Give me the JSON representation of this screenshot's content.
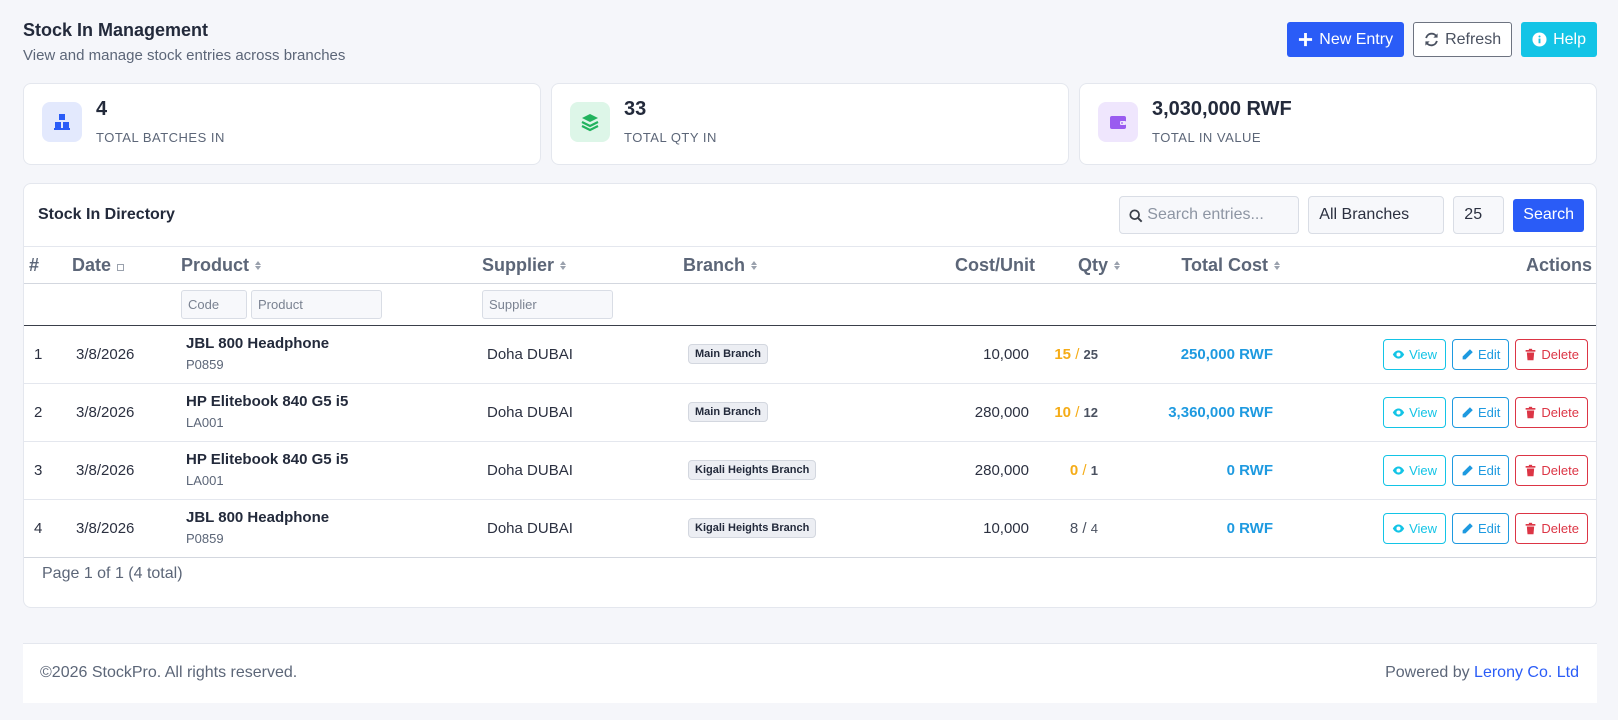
{
  "header": {
    "title": "Stock In Management",
    "subtitle": "View and manage stock entries across branches",
    "new_entry_label": "New Entry",
    "refresh_label": "Refresh",
    "help_label": "Help"
  },
  "stats": [
    {
      "value": "4",
      "label": "TOTAL BATCHES IN",
      "icon": "boxes-icon",
      "bg": "#e3e9fd",
      "color": "#2a5cf7"
    },
    {
      "value": "33",
      "label": "TOTAL QTY IN",
      "icon": "layers-icon",
      "bg": "#ddf6e8",
      "color": "#22b35e"
    },
    {
      "value": "3,030,000 RWF",
      "label": "TOTAL IN VALUE",
      "icon": "wallet-icon",
      "bg": "#efe6fd",
      "color": "#9a5cf0"
    }
  ],
  "directory": {
    "title": "Stock In Directory",
    "search_placeholder": "Search entries...",
    "branch_filter": "All Branches",
    "page_size": "25",
    "search_label": "Search"
  },
  "table": {
    "columns": {
      "num": "#",
      "date": "Date",
      "product": "Product",
      "supplier": "Supplier",
      "branch": "Branch",
      "cost": "Cost/Unit",
      "qty": "Qty",
      "total": "Total Cost",
      "actions": "Actions"
    },
    "filters": {
      "code_placeholder": "Code",
      "product_placeholder": "Product",
      "supplier_placeholder": "Supplier"
    },
    "rows": [
      {
        "num": "1",
        "date": "3/8/2026",
        "product": "JBL 800 Headphone",
        "code": "P0859",
        "supplier": "Doha DUBAI",
        "branch": "Main Branch",
        "cost": "10,000",
        "qty_in": "15",
        "qty_sep": "/",
        "qty_total": "25",
        "total": "250,000 RWF"
      },
      {
        "num": "2",
        "date": "3/8/2026",
        "product": "HP Elitebook 840 G5 i5",
        "code": "LA001",
        "supplier": "Doha DUBAI",
        "branch": "Main Branch",
        "cost": "280,000",
        "qty_in": "10",
        "qty_sep": "/",
        "qty_total": "12",
        "total": "3,360,000 RWF"
      },
      {
        "num": "3",
        "date": "3/8/2026",
        "product": "HP Elitebook 840 G5 i5",
        "code": "LA001",
        "supplier": "Doha DUBAI",
        "branch": "Kigali Heights Branch",
        "cost": "280,000",
        "qty_in": "0",
        "qty_sep": "/",
        "qty_total": "1",
        "total": "0 RWF"
      },
      {
        "num": "4",
        "date": "3/8/2026",
        "product": "JBL 800 Headphone",
        "code": "P0859",
        "supplier": "Doha DUBAI",
        "branch": "Kigali Heights Branch",
        "cost": "10,000",
        "qty_in": "8",
        "qty_sep": "/",
        "qty_total": "4",
        "total": "0 RWF"
      }
    ],
    "action_labels": {
      "view": "View",
      "edit": "Edit",
      "delete": "Delete"
    }
  },
  "pagination": {
    "text": "Page 1 of 1 (4 total)"
  },
  "footer": {
    "copyright": "©2026 StockPro. All rights reserved.",
    "powered_prefix": "Powered by",
    "powered_link": "Lerony Co. Ltd"
  }
}
